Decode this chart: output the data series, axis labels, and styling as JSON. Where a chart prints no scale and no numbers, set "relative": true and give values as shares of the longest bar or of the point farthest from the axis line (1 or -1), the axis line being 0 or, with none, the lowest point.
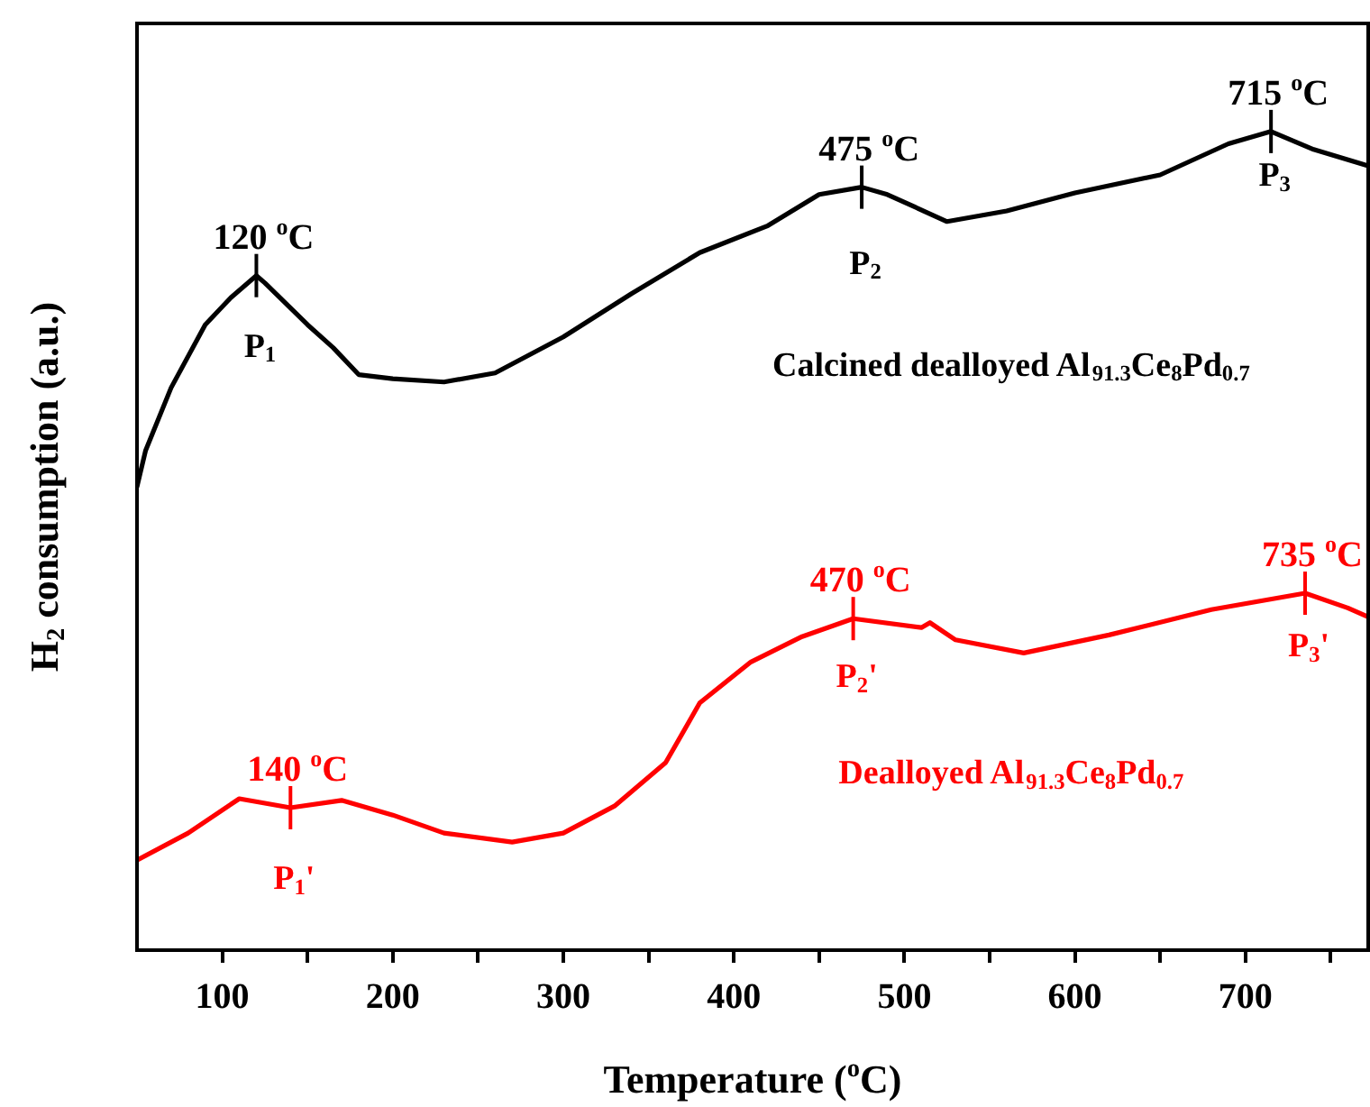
{
  "chart_data": {
    "type": "line",
    "relative": true,
    "xlabel": "Temperature ($^{o}$C)",
    "ylabel": "H$_{2}$ consumption (a.u.)",
    "xlim": [
      50,
      772
    ],
    "xticks": [
      100,
      {
        "value": 150,
        "label": null
      },
      200,
      {
        "value": 250,
        "label": null
      },
      300,
      {
        "value": 350,
        "label": null
      },
      400,
      {
        "value": 450,
        "label": null
      },
      500,
      {
        "value": 550,
        "label": null
      },
      600,
      {
        "value": 650,
        "label": null
      },
      700,
      {
        "value": 750,
        "label": null
      }
    ],
    "legend": false,
    "grid": false,
    "marker": "none",
    "line_style": "solid",
    "series": [
      {
        "name": "Calcined dealloyed Al$_{91.3}$Ce$_{8}$Pd$_{0.7}$",
        "color": "#000000",
        "x": [
          50,
          55,
          70,
          90,
          105,
          120,
          125,
          150,
          165,
          180,
          200,
          230,
          260,
          300,
          340,
          380,
          420,
          450,
          475,
          490,
          525,
          560,
          600,
          650,
          690,
          715,
          740,
          772
        ],
        "values": [
          0.566,
          0.61,
          0.687,
          0.764,
          0.797,
          0.824,
          0.815,
          0.764,
          0.736,
          0.703,
          0.698,
          0.694,
          0.705,
          0.749,
          0.802,
          0.852,
          0.885,
          0.923,
          0.932,
          0.923,
          0.89,
          0.903,
          0.925,
          0.947,
          0.985,
          1.0,
          0.978,
          0.958
        ]
      },
      {
        "name": "Dealloyed Al$_{91.3}$Ce$_{8}$Pd$_{0.7}$",
        "color": "#ff0000",
        "x": [
          50,
          80,
          110,
          140,
          170,
          200,
          230,
          270,
          300,
          330,
          360,
          380,
          410,
          440,
          470,
          510,
          515,
          530,
          570,
          620,
          680,
          735,
          760,
          772
        ],
        "values": [
          0.11,
          0.143,
          0.185,
          0.174,
          0.183,
          0.165,
          0.143,
          0.132,
          0.143,
          0.176,
          0.229,
          0.302,
          0.352,
          0.383,
          0.405,
          0.394,
          0.4,
          0.379,
          0.363,
          0.385,
          0.416,
          0.436,
          0.418,
          0.407
        ]
      }
    ],
    "annotations": [
      {
        "text": "120 $^{o}$C",
        "x": 120,
        "y": 0.824
      },
      {
        "text": "P$_{1}$",
        "x": 120,
        "y": 0.824
      },
      {
        "text": "475 $^{o}$C",
        "x": 475,
        "y": 0.932
      },
      {
        "text": "P$_{2}$",
        "x": 475,
        "y": 0.932
      },
      {
        "text": "715 $^{o}$C",
        "x": 715,
        "y": 1.0
      },
      {
        "text": "P$_{3}$",
        "x": 715,
        "y": 1.0
      },
      {
        "text": "140 $^{o}$C",
        "x": 140,
        "y": 0.174
      },
      {
        "text": "P$_{1}$'",
        "x": 140,
        "y": 0.174
      },
      {
        "text": "470 $^{o}$C",
        "x": 470,
        "y": 0.405
      },
      {
        "text": "P$_{2}$'",
        "x": 470,
        "y": 0.405
      },
      {
        "text": "735 $^{o}$C",
        "x": 735,
        "y": 0.436
      },
      {
        "text": "P$_{3}$'",
        "x": 735,
        "y": 0.436
      }
    ]
  }
}
